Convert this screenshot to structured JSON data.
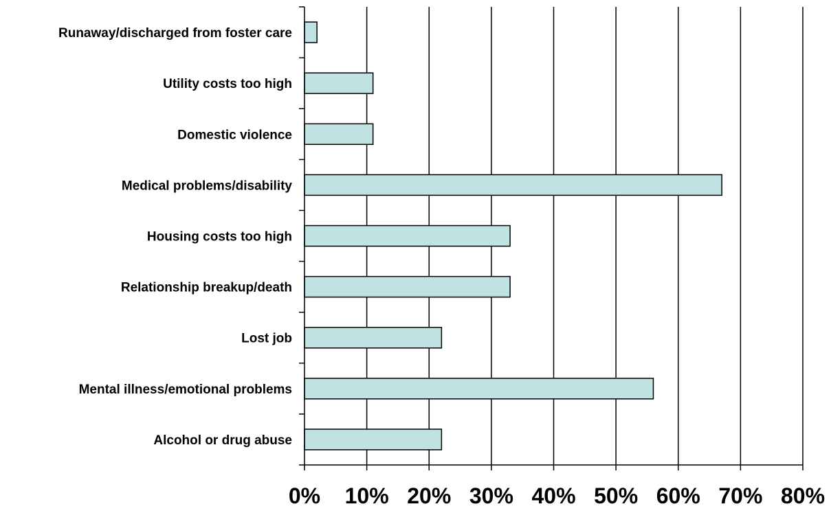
{
  "chart_data": {
    "type": "bar",
    "orientation": "horizontal",
    "categories": [
      "Runaway/discharged from foster care",
      "Utility costs too high",
      "Domestic violence",
      "Medical problems/disability",
      "Housing costs too high",
      "Relationship breakup/death",
      "Lost job",
      "Mental illness/emotional problems",
      "Alcohol or drug abuse"
    ],
    "values": [
      2,
      11,
      11,
      67,
      33,
      33,
      22,
      56,
      22
    ],
    "xlim": [
      0,
      80
    ],
    "xticks": [
      0,
      10,
      20,
      30,
      40,
      50,
      60,
      70,
      80
    ],
    "xtick_labels": [
      "0%",
      "10%",
      "20%",
      "30%",
      "40%",
      "50%",
      "60%",
      "70%",
      "80%"
    ],
    "title": "",
    "xlabel": "",
    "ylabel": "",
    "grid": "vertical gridlines",
    "legend": "none",
    "colors": {
      "bar_fill": "#c0e2e2",
      "bar_stroke": "#000000",
      "grid": "#000000"
    }
  }
}
